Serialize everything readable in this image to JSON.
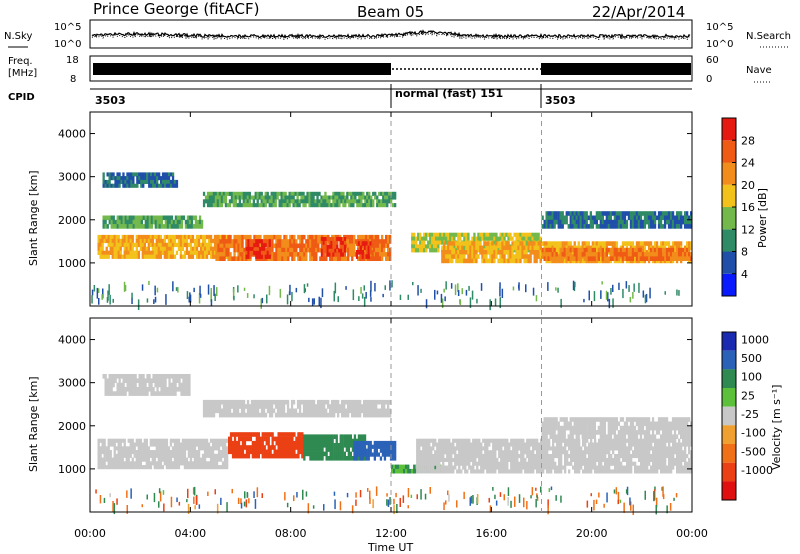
{
  "header": {
    "station": "Prince George (fitACF)",
    "beam": "Beam 05",
    "date": "22/Apr/2014"
  },
  "side_labels": {
    "nsky": "N.Sky",
    "nsearch": "N.Search",
    "freq_top": "Freq.",
    "freq_unit": "[MHz]",
    "nave": "Nave",
    "cpid": "CPID"
  },
  "noise_panel": {
    "left_ticks": [
      "10^5",
      "10^0"
    ],
    "right_ticks": [
      "10^5",
      "10^0"
    ]
  },
  "freq_panel": {
    "left_ticks": [
      "18",
      "8"
    ],
    "right_ticks": [
      "60",
      "0"
    ]
  },
  "cpid_segments": [
    {
      "label": "3503",
      "start_hour": 0,
      "end_hour": 12
    },
    {
      "label": "normal (fast) 151",
      "start_hour": 12,
      "end_hour": 18
    },
    {
      "label": "3503",
      "start_hour": 18,
      "end_hour": 24
    }
  ],
  "time_axis": {
    "label": "Time UT",
    "ticks": [
      "00:00",
      "04:00",
      "08:00",
      "12:00",
      "16:00",
      "20:00",
      "00:00"
    ],
    "tick_hours": [
      0,
      4,
      8,
      12,
      16,
      20,
      24
    ]
  },
  "range_axis": {
    "label": "Slant Range [km]",
    "ticks": [
      "1000",
      "2000",
      "3000",
      "4000"
    ],
    "tick_values": [
      1000,
      2000,
      3000,
      4000
    ],
    "range": [
      0,
      4500
    ]
  },
  "power_scale": {
    "label": "Power [dB]",
    "ticks": [
      "4",
      "8",
      "12",
      "16",
      "20",
      "24",
      "28"
    ],
    "colors": [
      "#0a1aff",
      "#1f4fa8",
      "#2f8a66",
      "#72b84a",
      "#f2c21a",
      "#f28c1a",
      "#ef5a14",
      "#e61a10"
    ]
  },
  "velocity_scale": {
    "label": "Velocity [m s⁻¹]",
    "ticks": [
      "1000",
      "500",
      "100",
      "25",
      "-25",
      "-100",
      "-500",
      "-1000"
    ],
    "colors": [
      "#1a2ab0",
      "#2a62b8",
      "#2f8a52",
      "#5cc03a",
      "#c8c8c8",
      "#f0a030",
      "#f07018",
      "#ea4014",
      "#e01010"
    ]
  },
  "chart_data": [
    {
      "type": "heatmap",
      "name": "power",
      "x_unit": "hours UT",
      "y_unit": "km",
      "xlim": [
        0,
        24
      ],
      "ylim": [
        0,
        4500
      ],
      "bands": [
        {
          "x": [
            0.3,
            5.5
          ],
          "y": [
            1100,
            1650
          ],
          "value": 20
        },
        {
          "x": [
            0.5,
            4.5
          ],
          "y": [
            1800,
            2100
          ],
          "value": 12
        },
        {
          "x": [
            0.5,
            3.5
          ],
          "y": [
            2750,
            3100
          ],
          "value": 8
        },
        {
          "x": [
            5.0,
            12.0
          ],
          "y": [
            1050,
            1650
          ],
          "value": 24
        },
        {
          "x": [
            6.2,
            7.2
          ],
          "y": [
            1100,
            1550
          ],
          "value": 28
        },
        {
          "x": [
            9.2,
            10.2
          ],
          "y": [
            1150,
            1600
          ],
          "value": 28
        },
        {
          "x": [
            10.6,
            11.3
          ],
          "y": [
            1100,
            1500
          ],
          "value": 28
        },
        {
          "x": [
            4.5,
            12.2
          ],
          "y": [
            2300,
            2650
          ],
          "value": 12
        },
        {
          "x": [
            12.8,
            18.0
          ],
          "y": [
            1250,
            1700
          ],
          "value": 16
        },
        {
          "x": [
            14.0,
            24.0
          ],
          "y": [
            1000,
            1500
          ],
          "value": 20
        },
        {
          "x": [
            18.0,
            24.0
          ],
          "y": [
            1800,
            2200
          ],
          "value": 8
        },
        {
          "x": [
            18.0,
            24.0
          ],
          "y": [
            1050,
            1350
          ],
          "value": 24
        }
      ]
    },
    {
      "type": "heatmap",
      "name": "velocity",
      "x_unit": "hours UT",
      "y_unit": "km",
      "xlim": [
        0,
        24
      ],
      "ylim": [
        0,
        4500
      ],
      "bands": [
        {
          "x": [
            0.3,
            5.5
          ],
          "y": [
            1000,
            1700
          ],
          "value": 0
        },
        {
          "x": [
            0.5,
            4.0
          ],
          "y": [
            2700,
            3200
          ],
          "value": 0
        },
        {
          "x": [
            4.5,
            12.0
          ],
          "y": [
            2200,
            2600
          ],
          "value": 0
        },
        {
          "x": [
            5.5,
            8.5
          ],
          "y": [
            1250,
            1850
          ],
          "value": -500
        },
        {
          "x": [
            8.5,
            11.0
          ],
          "y": [
            1200,
            1800
          ],
          "value": 100
        },
        {
          "x": [
            10.5,
            12.2
          ],
          "y": [
            1200,
            1650
          ],
          "value": 500
        },
        {
          "x": [
            12.0,
            14.0
          ],
          "y": [
            900,
            1100
          ],
          "value": 60
        },
        {
          "x": [
            13.0,
            24.0
          ],
          "y": [
            900,
            1700
          ],
          "value": 0
        },
        {
          "x": [
            18.0,
            24.0
          ],
          "y": [
            1700,
            2200
          ],
          "value": 0
        }
      ]
    }
  ]
}
